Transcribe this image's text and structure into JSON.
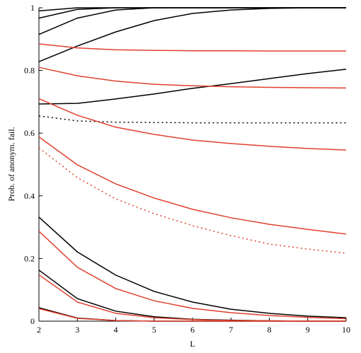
{
  "chart_data": {
    "type": "line",
    "x_label": "L",
    "y_label": "Prob. of anonym. fail.",
    "x": [
      2,
      3,
      4,
      5,
      6,
      7,
      8,
      9,
      10
    ],
    "xlim": [
      2,
      10
    ],
    "xticks": [
      2,
      3,
      4,
      5,
      6,
      7,
      8,
      9,
      10
    ],
    "ylim": [
      0,
      1
    ],
    "yticks": [
      0,
      0.2,
      0.4,
      0.6,
      0.8,
      1
    ],
    "series": [
      {
        "color": "#000000",
        "style": "solid",
        "values": [
          0.99,
          1,
          1,
          1,
          1,
          1,
          1,
          1,
          1
        ]
      },
      {
        "color": "#000000",
        "style": "solid",
        "values": [
          0.967,
          0.995,
          1,
          1,
          1,
          1,
          1,
          1,
          1
        ]
      },
      {
        "color": "#000000",
        "style": "solid",
        "values": [
          0.915,
          0.967,
          0.993,
          1,
          1,
          1,
          1,
          1,
          1
        ]
      },
      {
        "color": "#000000",
        "style": "solid",
        "values": [
          0.828,
          0.878,
          0.923,
          0.959,
          0.982,
          0.993,
          0.998,
          1,
          1
        ]
      },
      {
        "color": "#000000",
        "style": "solid",
        "values": [
          0.693,
          0.695,
          0.709,
          0.725,
          0.743,
          0.758,
          0.774,
          0.79,
          0.804
        ]
      },
      {
        "color": "#000000",
        "style": "dotted",
        "values": [
          0.655,
          0.639,
          0.635,
          0.634,
          0.633,
          0.633,
          0.633,
          0.633,
          0.633
        ]
      },
      {
        "color": "#000000",
        "style": "solid",
        "values": [
          0.332,
          0.221,
          0.147,
          0.095,
          0.061,
          0.038,
          0.025,
          0.016,
          0.011
        ]
      },
      {
        "color": "#000000",
        "style": "solid",
        "values": [
          0.163,
          0.072,
          0.032,
          0.014,
          0.006,
          0.003,
          0.001,
          0,
          0
        ]
      },
      {
        "color": "#000000",
        "style": "solid",
        "values": [
          0.043,
          0.01,
          0.002,
          0,
          0,
          0,
          0,
          0,
          0
        ]
      },
      {
        "color": "#e0402e",
        "style": "solid",
        "values": [
          0.885,
          0.872,
          0.866,
          0.864,
          0.863,
          0.863,
          0.862,
          0.862,
          0.862
        ]
      },
      {
        "color": "#e0402e",
        "style": "solid",
        "values": [
          0.81,
          0.783,
          0.766,
          0.756,
          0.751,
          0.748,
          0.746,
          0.745,
          0.744
        ]
      },
      {
        "color": "#e0402e",
        "style": "solid",
        "values": [
          0.71,
          0.657,
          0.619,
          0.596,
          0.578,
          0.567,
          0.558,
          0.551,
          0.546
        ]
      },
      {
        "color": "#e0402e",
        "style": "solid",
        "values": [
          0.588,
          0.499,
          0.438,
          0.393,
          0.357,
          0.33,
          0.309,
          0.293,
          0.278
        ]
      },
      {
        "color": "#e0402e",
        "style": "dotted",
        "values": [
          0.553,
          0.458,
          0.39,
          0.343,
          0.305,
          0.273,
          0.246,
          0.23,
          0.217
        ]
      },
      {
        "color": "#e0402e",
        "style": "solid",
        "values": [
          0.287,
          0.172,
          0.104,
          0.065,
          0.041,
          0.027,
          0.018,
          0.012,
          0.008
        ]
      },
      {
        "color": "#e0402e",
        "style": "solid",
        "values": [
          0.148,
          0.061,
          0.025,
          0.011,
          0.005,
          0.002,
          0.001,
          0,
          0
        ]
      },
      {
        "color": "#e0402e",
        "style": "solid",
        "values": [
          0.04,
          0.009,
          0.002,
          0,
          0,
          0,
          0,
          0,
          0
        ]
      }
    ]
  }
}
